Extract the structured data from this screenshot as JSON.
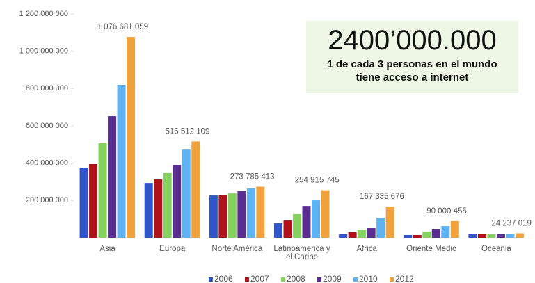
{
  "chart_data": {
    "type": "bar",
    "categories": [
      "Asia",
      "Europa",
      "Norte América",
      "Latinoamerica y el Caribe",
      "Africa",
      "Oriente Medio",
      "Oceania"
    ],
    "series": [
      {
        "name": "2006",
        "color": "#2f55c8",
        "values": [
          376000000,
          294000000,
          227000000,
          78000000,
          19000000,
          15000000,
          19000000
        ]
      },
      {
        "name": "2007",
        "color": "#b0121c",
        "values": [
          395000000,
          313000000,
          231000000,
          93000000,
          30000000,
          15000000,
          19000000
        ]
      },
      {
        "name": "2008",
        "color": "#86d25e",
        "values": [
          507000000,
          347000000,
          238000000,
          127000000,
          41000000,
          34000000,
          19000000
        ]
      },
      {
        "name": "2009",
        "color": "#5a2d91",
        "values": [
          652000000,
          391000000,
          250000000,
          171000000,
          52000000,
          45000000,
          22000000
        ]
      },
      {
        "name": "2010",
        "color": "#5eb4f2",
        "values": [
          820000000,
          473000000,
          265000000,
          201000000,
          108000000,
          63000000,
          22000000
        ]
      },
      {
        "name": "2012",
        "color": "#f2a23c",
        "values": [
          1076681059,
          516512109,
          273785413,
          254915745,
          167335676,
          90000455,
          24237019
        ],
        "value_labels": [
          "1 076 681 059",
          "516 512 109",
          "273 785 413",
          "254 915 745",
          "167 335 676",
          "90 000 455",
          "24 237 019"
        ]
      }
    ],
    "ylim": [
      0,
      1200000000
    ],
    "yticks": [
      {
        "value": 200000000,
        "label": "200 000 000"
      },
      {
        "value": 400000000,
        "label": "400 000 000"
      },
      {
        "value": 600000000,
        "label": "600 000 000"
      },
      {
        "value": 800000000,
        "label": "800 000 000"
      },
      {
        "value": 1000000000,
        "label": "1 000 000 000"
      },
      {
        "value": 1200000000,
        "label": "1 200 000 000"
      }
    ],
    "grid": false,
    "legend": "bottom",
    "annotation": {
      "headline": "2400’000.000",
      "text": "1 de  cada 3 personas en el mundo tiene acceso a internet"
    }
  }
}
